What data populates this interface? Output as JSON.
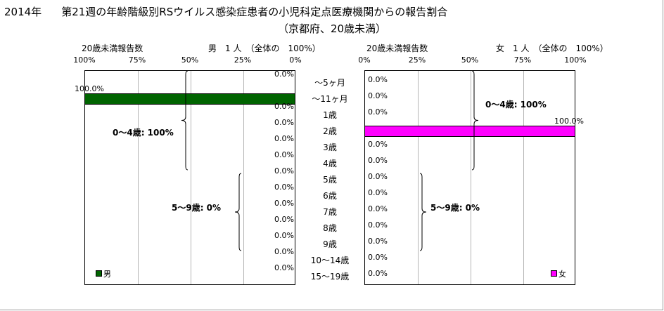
{
  "title": {
    "year": "2014年",
    "main": "第21週の年齢階級別RSウイルス感染症患者の小児科定点医療機関からの報告割合",
    "sub": "（京都府、20歳未満）"
  },
  "colors": {
    "male": "#006400",
    "female": "#ff00ff"
  },
  "chart_data": [
    {
      "type": "bar",
      "orientation": "horizontal",
      "direction": "right-to-left",
      "panel_header_left": "20歳未満報告数",
      "panel_header_right": "男　1 人　（全体の　100%）",
      "xlim": [
        0,
        100
      ],
      "ticks": [
        "100%",
        "75%",
        "50%",
        "25%",
        "0%"
      ],
      "categories": [
        "～5ヶ月",
        "～11ヶ月",
        "1歳",
        "2歳",
        "3歳",
        "4歳",
        "5歳",
        "6歳",
        "7歳",
        "8歳",
        "9歳",
        "10～14歳",
        "15～19歳"
      ],
      "series": [
        {
          "name": "男",
          "values": [
            0,
            100,
            0,
            0,
            0,
            0,
            0,
            0,
            0,
            0,
            0,
            0,
            0
          ]
        }
      ],
      "data_labels": [
        "0.0%",
        "100.0%",
        "0.0%",
        "0.0%",
        "0.0%",
        "0.0%",
        "0.0%",
        "0.0%",
        "0.0%",
        "0.0%",
        "0.0%",
        "0.0%",
        "0.0%"
      ],
      "groups": [
        {
          "label": "0～4歳: 100%",
          "from": 0,
          "to": 5
        },
        {
          "label": "5～9歳: 0%",
          "from": 6,
          "to": 10
        }
      ],
      "legend": "bottom-left"
    },
    {
      "type": "bar",
      "orientation": "horizontal",
      "direction": "left-to-right",
      "panel_header_left": "20歳未満報告数",
      "panel_header_right": "女　1 人　（全体の　100%）",
      "xlim": [
        0,
        100
      ],
      "ticks": [
        "0%",
        "25%",
        "50%",
        "75%",
        "100%"
      ],
      "categories": [
        "～5ヶ月",
        "～11ヶ月",
        "1歳",
        "2歳",
        "3歳",
        "4歳",
        "5歳",
        "6歳",
        "7歳",
        "8歳",
        "9歳",
        "10～14歳",
        "15～19歳"
      ],
      "series": [
        {
          "name": "女",
          "values": [
            0,
            0,
            0,
            100,
            0,
            0,
            0,
            0,
            0,
            0,
            0,
            0,
            0
          ]
        }
      ],
      "data_labels": [
        "0.0%",
        "0.0%",
        "0.0%",
        "100.0%",
        "0.0%",
        "0.0%",
        "0.0%",
        "0.0%",
        "0.0%",
        "0.0%",
        "0.0%",
        "0.0%",
        "0.0%"
      ],
      "groups": [
        {
          "label": "0～4歳: 100%",
          "from": 0,
          "to": 5
        },
        {
          "label": "5～9歳: 0%",
          "from": 6,
          "to": 10
        }
      ],
      "legend": "bottom-right"
    }
  ]
}
